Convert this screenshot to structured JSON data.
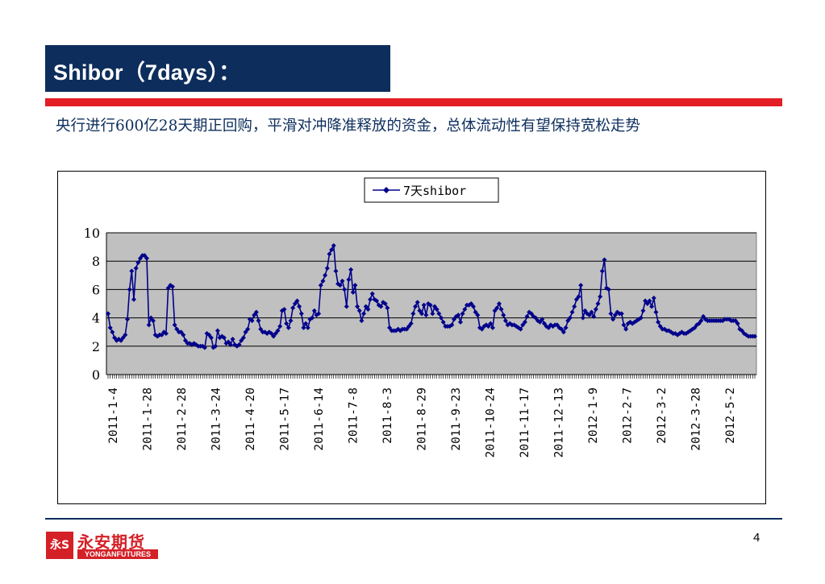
{
  "header": {
    "title": "Shibor（7days）："
  },
  "subtitle": "央行进行600亿28天期正回购，平滑对冲降准释放的资金，总体流动性有望保持宽松走势",
  "footer": {
    "logo_cn": "永安期货",
    "logo_en": "YONGANFUTURES",
    "logo_mark": "永S",
    "page_number": "4"
  },
  "colors": {
    "title_bg": "#0d2e5c",
    "accent_red": "#e31e24",
    "series_color": "#00008b",
    "plot_bg": "#c0c0c0"
  },
  "chart_data": {
    "type": "line",
    "title": "",
    "xlabel": "",
    "ylabel": "",
    "ylim": [
      0,
      10
    ],
    "yticks": [
      0,
      2,
      4,
      6,
      8,
      10
    ],
    "grid": true,
    "legend_position": "top-center",
    "x_tick_labels": [
      "2011-1-4",
      "2011-1-28",
      "2011-2-28",
      "2011-3-24",
      "2011-4-20",
      "2011-5-17",
      "2011-6-14",
      "2011-7-8",
      "2011-8-3",
      "2011-8-29",
      "2011-9-23",
      "2011-10-24",
      "2011-11-17",
      "2011-12-13",
      "2012-1-9",
      "2012-2-7",
      "2012-3-2",
      "2012-3-28",
      "2012-5-2"
    ],
    "series": [
      {
        "name": "7天shibor",
        "marker": "diamond",
        "values": [
          4.3,
          3.3,
          3.0,
          2.6,
          2.4,
          2.5,
          2.4,
          2.6,
          2.8,
          3.9,
          6.0,
          7.3,
          5.3,
          7.5,
          7.9,
          8.2,
          8.4,
          8.4,
          8.2,
          3.5,
          4.0,
          3.8,
          2.8,
          2.7,
          2.8,
          2.8,
          3.0,
          2.9,
          6.1,
          6.3,
          6.2,
          3.5,
          3.2,
          3.0,
          3.0,
          2.8,
          2.4,
          2.2,
          2.2,
          2.1,
          2.2,
          2.1,
          2.0,
          2.0,
          2.0,
          1.9,
          2.9,
          2.8,
          2.6,
          1.9,
          2.0,
          3.1,
          2.6,
          2.7,
          2.6,
          2.2,
          2.3,
          2.1,
          2.5,
          2.1,
          2.0,
          2.1,
          2.4,
          2.6,
          3.0,
          3.2,
          3.9,
          3.8,
          4.2,
          4.4,
          3.8,
          3.2,
          3.0,
          3.0,
          2.9,
          3.0,
          2.9,
          2.7,
          2.9,
          3.1,
          3.4,
          4.5,
          4.6,
          3.6,
          3.3,
          3.8,
          4.7,
          5.0,
          5.2,
          4.8,
          4.3,
          3.3,
          3.6,
          3.3,
          3.9,
          4.0,
          4.5,
          4.2,
          4.3,
          6.3,
          6.6,
          7.0,
          7.5,
          8.5,
          8.8,
          9.1,
          7.3,
          6.4,
          6.3,
          6.6,
          6.0,
          4.8,
          6.7,
          7.4,
          5.8,
          6.3,
          4.8,
          4.5,
          3.8,
          4.3,
          4.8,
          4.6,
          5.3,
          5.7,
          5.3,
          5.2,
          4.9,
          4.8,
          5.1,
          5.0,
          4.7,
          3.3,
          3.1,
          3.1,
          3.1,
          3.2,
          3.1,
          3.2,
          3.2,
          3.2,
          3.4,
          3.6,
          4.3,
          4.8,
          5.1,
          4.5,
          4.3,
          4.9,
          4.2,
          5.0,
          4.9,
          4.3,
          4.8,
          4.6,
          4.3,
          4.0,
          3.7,
          3.4,
          3.4,
          3.4,
          3.5,
          3.9,
          4.1,
          4.2,
          3.7,
          4.3,
          4.6,
          4.9,
          4.9,
          5.0,
          4.8,
          4.4,
          4.2,
          3.3,
          3.2,
          3.4,
          3.5,
          3.4,
          3.6,
          3.3,
          4.5,
          4.7,
          5.0,
          4.6,
          4.2,
          3.8,
          3.5,
          3.6,
          3.5,
          3.5,
          3.4,
          3.3,
          3.2,
          3.5,
          3.7,
          4.1,
          4.4,
          4.3,
          4.1,
          4.0,
          3.8,
          3.7,
          3.9,
          3.6,
          3.4,
          3.3,
          3.5,
          3.4,
          3.5,
          3.5,
          3.3,
          3.2,
          3.0,
          3.3,
          3.8,
          4.0,
          4.4,
          4.8,
          5.3,
          5.5,
          6.3,
          4.0,
          4.5,
          4.3,
          4.2,
          4.4,
          4.1,
          4.6,
          5.0,
          5.5,
          7.3,
          8.1,
          6.1,
          6.0,
          4.3,
          3.9,
          4.2,
          4.4,
          4.3,
          4.3,
          3.5,
          3.2,
          3.6,
          3.7,
          3.6,
          3.7,
          3.8,
          3.9,
          4.0,
          4.5,
          5.2,
          5.0,
          5.2,
          4.8,
          5.4,
          4.4,
          3.7,
          3.4,
          3.2,
          3.2,
          3.1,
          3.1,
          3.0,
          2.9,
          2.9,
          2.8,
          2.9,
          3.0,
          2.9,
          2.9,
          3.0,
          3.1,
          3.2,
          3.3,
          3.5,
          3.6,
          3.8,
          4.1,
          3.9,
          3.8,
          3.8,
          3.8,
          3.8,
          3.8,
          3.8,
          3.8,
          3.8,
          3.9,
          3.9,
          3.9,
          3.8,
          3.8,
          3.8,
          3.6,
          3.2,
          3.1,
          2.9,
          2.8,
          2.7,
          2.7,
          2.7,
          2.7
        ]
      }
    ]
  }
}
